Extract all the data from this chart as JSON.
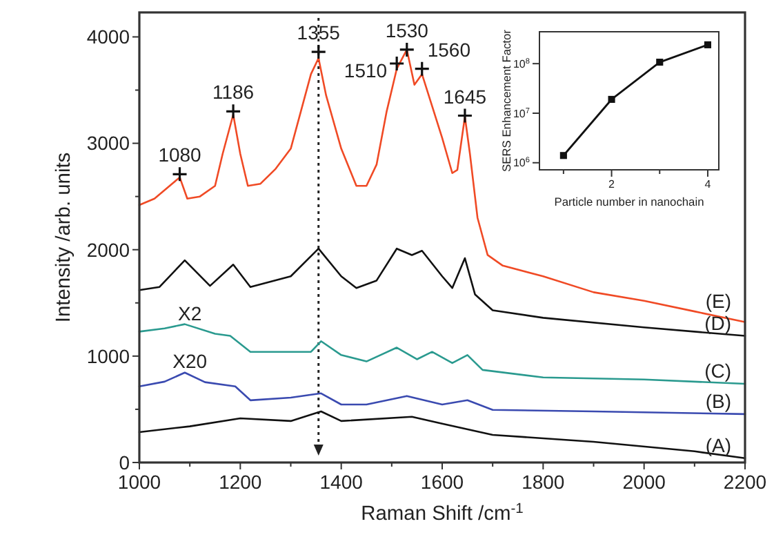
{
  "chart_data": [
    {
      "type": "line",
      "xlabel": "Raman Shift /cm$^{-1}$",
      "ylabel": "Intensity /arb. units",
      "xlim": [
        1000,
        2200
      ],
      "ylim": [
        0,
        4230
      ],
      "xticks": [
        1000,
        {
          "value": 1100,
          "label": null
        },
        1200,
        {
          "value": 1300,
          "label": null
        },
        1400,
        {
          "value": 1500,
          "label": null
        },
        1600,
        {
          "value": 1700,
          "label": null
        },
        1800,
        {
          "value": 1900,
          "label": null
        },
        2000,
        {
          "value": 2100,
          "label": null
        },
        2200
      ],
      "yticks": [
        0,
        {
          "value": 500,
          "label": null
        },
        1000,
        {
          "value": 1500,
          "label": null
        },
        2000,
        {
          "value": 2500,
          "label": null
        },
        3000,
        {
          "value": 3500,
          "label": null
        },
        4000
      ],
      "grid": false,
      "legend": false,
      "marker": "none",
      "line_style": "solid",
      "series": [
        {
          "name": "(E)",
          "color": "#f04a25",
          "x": [
            1000,
            1030,
            1060,
            1080,
            1095,
            1120,
            1150,
            1165,
            1186,
            1200,
            1215,
            1240,
            1270,
            1300,
            1320,
            1340,
            1355,
            1370,
            1400,
            1430,
            1450,
            1470,
            1490,
            1510,
            1530,
            1545,
            1560,
            1580,
            1600,
            1620,
            1630,
            1645,
            1655,
            1670,
            1690,
            1720,
            1800,
            1900,
            2000,
            2100,
            2200
          ],
          "values": [
            2420,
            2480,
            2600,
            2680,
            2480,
            2500,
            2600,
            2900,
            3270,
            2900,
            2600,
            2620,
            2760,
            2950,
            3300,
            3650,
            3800,
            3450,
            2950,
            2600,
            2600,
            2800,
            3300,
            3700,
            3880,
            3550,
            3650,
            3350,
            3050,
            2720,
            2750,
            3250,
            2900,
            2300,
            1950,
            1850,
            1750,
            1600,
            1520,
            1420,
            1320
          ]
        },
        {
          "name": "(D)",
          "color": "#111111",
          "x": [
            1000,
            1040,
            1090,
            1140,
            1186,
            1220,
            1300,
            1355,
            1400,
            1430,
            1470,
            1510,
            1540,
            1560,
            1600,
            1620,
            1645,
            1665,
            1700,
            1800,
            2000,
            2200
          ],
          "values": [
            1620,
            1650,
            1900,
            1660,
            1860,
            1650,
            1750,
            2010,
            1750,
            1640,
            1710,
            2010,
            1950,
            1990,
            1750,
            1640,
            1920,
            1580,
            1430,
            1360,
            1270,
            1190
          ]
        },
        {
          "name": "(C)",
          "color": "#2a9a8f",
          "x": [
            1000,
            1050,
            1090,
            1150,
            1180,
            1220,
            1300,
            1340,
            1360,
            1400,
            1450,
            1510,
            1550,
            1580,
            1620,
            1650,
            1680,
            1800,
            2000,
            2200
          ],
          "values": [
            1230,
            1260,
            1300,
            1210,
            1190,
            1040,
            1040,
            1040,
            1140,
            1010,
            950,
            1080,
            970,
            1040,
            935,
            1010,
            870,
            800,
            780,
            740
          ]
        },
        {
          "name": "(B)",
          "color": "#3a4ab0",
          "x": [
            1000,
            1050,
            1090,
            1130,
            1190,
            1220,
            1300,
            1360,
            1400,
            1450,
            1530,
            1600,
            1650,
            1700,
            1900,
            2200
          ],
          "values": [
            715,
            760,
            845,
            755,
            715,
            585,
            610,
            650,
            545,
            545,
            625,
            545,
            585,
            495,
            480,
            455
          ]
        },
        {
          "name": "(A)",
          "color": "#111111",
          "x": [
            1000,
            1100,
            1200,
            1300,
            1360,
            1400,
            1540,
            1600,
            1700,
            1900,
            2100,
            2200
          ],
          "values": [
            285,
            340,
            415,
            390,
            480,
            390,
            430,
            365,
            260,
            195,
            105,
            40
          ]
        }
      ],
      "ref_lines": [
        {
          "axis": "x",
          "value": 1355,
          "line_style": "dotted",
          "color": "#222222"
        }
      ],
      "annotations": [
        {
          "text": "1080",
          "x": 1080,
          "y": 2710
        },
        {
          "text": "1186",
          "x": 1186,
          "y": 3300
        },
        {
          "text": "1355",
          "x": 1355,
          "y": 3860
        },
        {
          "text": "1510",
          "x": 1510,
          "y": 3750
        },
        {
          "text": "1530",
          "x": 1530,
          "y": 3880
        },
        {
          "text": "1560",
          "x": 1560,
          "y": 3700
        },
        {
          "text": "1645",
          "x": 1645,
          "y": 3260
        },
        {
          "text": "X2",
          "x": 1100,
          "y": 1300
        },
        {
          "text": "X20",
          "x": 1100,
          "y": 850
        }
      ]
    },
    {
      "type": "line",
      "xlabel": "Particle number in nanochain",
      "ylabel": "SERS Enhancement Factor",
      "log": "y",
      "xlim": [
        0.5,
        4.23
      ],
      "ylim": [
        720000,
        440000000
      ],
      "xticks": [
        {
          "value": 1,
          "label": null
        },
        2,
        {
          "value": 3,
          "label": null
        },
        4
      ],
      "yticks": [
        {
          "value": 1000000,
          "label": "10$^{6}$"
        },
        {
          "value": 10000000,
          "label": "10$^{7}$"
        },
        {
          "value": 100000000,
          "label": "10$^{8}$"
        }
      ],
      "marker": "square",
      "grid": false,
      "legend": false,
      "series": [
        {
          "color": "#111111",
          "x": [
            1,
            2,
            3,
            4
          ],
          "values": [
            1400000,
            19000000,
            107000000,
            240000000
          ]
        }
      ]
    }
  ]
}
